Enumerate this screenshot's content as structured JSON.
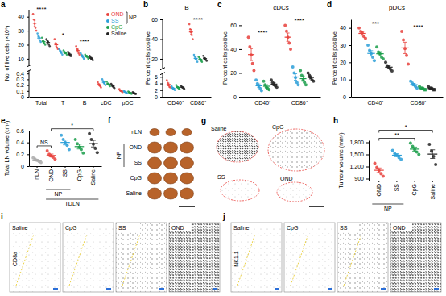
{
  "chart_data": [
    {
      "panel": "a",
      "type": "dot",
      "y_label": "No. of live cells (×10⁶)",
      "categories": [
        "Total",
        "T",
        "B",
        "cDC",
        "pDC"
      ],
      "ylim": [
        0,
        45
      ],
      "yticks": [
        0,
        0.1,
        0.2,
        0.3,
        0.4,
        10,
        20,
        30,
        40
      ],
      "legend": "top-right",
      "legend_group": {
        "label": "NP",
        "members": [
          "OND",
          "SS"
        ]
      },
      "series": [
        {
          "name": "OND",
          "color": "#e8413c",
          "values": [
            [
              42,
              38,
              35,
              32,
              30
            ],
            [
              24,
              21,
              20,
              18,
              17
            ],
            [
              19,
              17,
              16,
              14,
              13
            ],
            [
              0.25,
              0.22,
              0.2,
              0.18,
              0.16
            ],
            [
              0.13,
              0.11,
              0.1,
              0.09,
              0.08
            ]
          ],
          "mean": [
            35.4,
            20,
            15.8,
            0.202,
            0.102
          ],
          "error": [
            2.1,
            1.2,
            1.1,
            0.016,
            0.009
          ]
        },
        {
          "name": "SS",
          "color": "#2b9fd8",
          "values": [
            [
              28,
              26,
              25,
              23,
              22
            ],
            [
              17,
              16,
              15,
              14,
              13
            ],
            [
              14,
              13,
              12,
              11,
              10
            ],
            [
              0.3,
              0.27,
              0.25,
              0.22,
              0.2
            ],
            [
              0.1,
              0.09,
              0.08,
              0.07,
              0.06
            ]
          ],
          "mean": [
            24.8,
            15,
            12,
            0.248,
            0.08
          ],
          "error": [
            1.1,
            0.7,
            0.7,
            0.018,
            0.007
          ]
        },
        {
          "name": "CpG",
          "color": "#1a9e4a",
          "values": [
            [
              25,
              23,
              22,
              21,
              20
            ],
            [
              16,
              15,
              14,
              14,
              13
            ],
            [
              13,
              12,
              12,
              11,
              10
            ],
            [
              0.26,
              0.23,
              0.22,
              0.2,
              0.18
            ],
            [
              0.09,
              0.08,
              0.07,
              0.06,
              0.05
            ]
          ],
          "mean": [
            22.2,
            14.4,
            11.6,
            0.218,
            0.07
          ],
          "error": [
            0.9,
            0.5,
            0.5,
            0.013,
            0.007
          ]
        },
        {
          "name": "Saline",
          "color": "#222222",
          "values": [
            [
              24,
              23,
              22,
              20,
              19
            ],
            [
              15,
              14,
              13,
              12,
              12
            ],
            [
              12,
              11,
              10,
              10,
              9
            ],
            [
              0.22,
              0.2,
              0.18,
              0.16,
              0.15
            ],
            [
              0.08,
              0.07,
              0.06,
              0.05,
              0.05
            ]
          ],
          "mean": [
            21.6,
            13.2,
            10.4,
            0.182,
            0.062
          ],
          "error": [
            0.9,
            0.6,
            0.5,
            0.013,
            0.006
          ]
        }
      ],
      "annotations": [
        {
          "text": "****",
          "category": "Total"
        },
        {
          "text": "*",
          "category": "T"
        },
        {
          "text": "****",
          "category": "B"
        }
      ]
    },
    {
      "panel": "b",
      "type": "dot",
      "title": "B",
      "y_label": "Percent cells positive",
      "categories": [
        "CD40⁺",
        "CD86⁺"
      ],
      "ylim": [
        0,
        60
      ],
      "yticks": [
        0,
        2,
        4,
        6,
        20,
        40,
        60
      ],
      "series": [
        {
          "color": "#e8413c",
          "values": [
            [
              5,
              4.2,
              3.5,
              3,
              2.8
            ],
            [
              55,
              50,
              47,
              44,
              40
            ]
          ],
          "mean": [
            3.7,
            47.2
          ],
          "error": [
            0.4,
            2.6
          ]
        },
        {
          "color": "#2b9fd8",
          "values": [
            [
              3.2,
              2.8,
              2.5,
              2.2,
              2
            ],
            [
              24,
              22,
              20,
              19,
              17
            ]
          ],
          "mean": [
            2.54,
            20.4
          ],
          "error": [
            0.2,
            1.2
          ]
        },
        {
          "color": "#1a9e4a",
          "values": [
            [
              3.5,
              3,
              2.8,
              2.5,
              2.3
            ],
            [
              22,
              21,
              19,
              18,
              17
            ]
          ],
          "mean": [
            2.82,
            19.4
          ],
          "error": [
            0.2,
            0.9
          ]
        },
        {
          "color": "#222222",
          "values": [
            [
              3.3,
              3,
              2.8,
              2.6,
              2.4
            ],
            [
              23,
              21,
              20,
              19,
              18
            ]
          ],
          "mean": [
            2.82,
            20.2
          ],
          "error": [
            0.16,
            0.9
          ]
        }
      ],
      "annotations": [
        {
          "text": "****",
          "category": "CD86⁺"
        }
      ]
    },
    {
      "panel": "c",
      "type": "dot",
      "title": "cDCs",
      "y_label": "Percent cells positive",
      "categories": [
        "CD40⁺",
        "CD86⁺"
      ],
      "ylim": [
        0,
        65
      ],
      "yticks": [
        0,
        20,
        40,
        60
      ],
      "series": [
        {
          "color": "#e8413c",
          "values": [
            [
              50,
              42,
              35,
              28,
              22
            ],
            [
              60,
              55,
              50,
              45,
              40
            ]
          ],
          "mean": [
            35.4,
            50
          ],
          "error": [
            5,
            3.5
          ]
        },
        {
          "color": "#2b9fd8",
          "values": [
            [
              14,
              11,
              9,
              7,
              5
            ],
            [
              25,
              20,
              16,
              12,
              10
            ]
          ],
          "mean": [
            9.2,
            16.6
          ],
          "error": [
            1.5,
            2.7
          ]
        },
        {
          "color": "#1a9e4a",
          "values": [
            [
              13,
              10,
              8,
              7,
              6
            ],
            [
              22,
              18,
              14,
              12,
              10
            ]
          ],
          "mean": [
            8.8,
            15.2
          ],
          "error": [
            1.3,
            2.2
          ]
        },
        {
          "color": "#222222",
          "values": [
            [
              14,
              12,
              10,
              9,
              8
            ],
            [
              20,
              18,
              16,
              14,
              13
            ]
          ],
          "mean": [
            10.6,
            16.2
          ],
          "error": [
            1.1,
            1.3
          ]
        }
      ],
      "annotations": [
        {
          "text": "****",
          "category": "CD40⁺"
        },
        {
          "text": "****",
          "category": "CD86⁺"
        }
      ]
    },
    {
      "panel": "d",
      "type": "dot",
      "title": "pDCs",
      "y_label": "Percent cells positive",
      "categories": [
        "CD40⁺",
        "CD86⁺"
      ],
      "ylim": [
        0,
        45
      ],
      "yticks": [
        0,
        10,
        20,
        30,
        40
      ],
      "series": [
        {
          "color": "#e8413c",
          "values": [
            [
              40,
              38,
              37,
              35,
              34
            ],
            [
              38,
              33,
              28,
              24,
              19
            ]
          ],
          "mean": [
            36.8,
            28.4
          ],
          "error": [
            1.1,
            3.3
          ]
        },
        {
          "color": "#2b9fd8",
          "values": [
            [
              30,
              27,
              25,
              23,
              21
            ],
            [
              9,
              8,
              7,
              6,
              5
            ]
          ],
          "mean": [
            25.2,
            7
          ],
          "error": [
            1.6,
            0.7
          ]
        },
        {
          "color": "#1a9e4a",
          "values": [
            [
              29,
              26,
              25,
              23,
              22
            ],
            [
              6,
              5,
              5,
              4,
              4
            ]
          ],
          "mean": [
            25,
            4.8
          ],
          "error": [
            1.2,
            0.4
          ]
        },
        {
          "color": "#222222",
          "values": [
            [
              20,
              18,
              17,
              16,
              15
            ],
            [
              6,
              5,
              5,
              4,
              4
            ]
          ],
          "mean": [
            17.2,
            4.8
          ],
          "error": [
            0.9,
            0.4
          ]
        }
      ],
      "annotations": [
        {
          "text": "***",
          "category": "CD40⁺"
        },
        {
          "text": "****",
          "category": "CD86⁺"
        }
      ]
    },
    {
      "panel": "e",
      "type": "dot",
      "y_label": "Total LN volume (cm³)",
      "categories": [
        "nLN",
        "OND",
        "SS",
        "CpG",
        "Saline"
      ],
      "colors": [
        "#aaaaaa",
        "#e8413c",
        "#2b9fd8",
        "#1a9e4a",
        "#222222"
      ],
      "ylim": [
        0,
        0.6
      ],
      "yticks": [
        0,
        0.2,
        0.4,
        0.6
      ],
      "values": [
        [
          0.14,
          0.12,
          0.1,
          0.08,
          0.06
        ],
        [
          0.26,
          0.2,
          0.17,
          0.15,
          0.12
        ],
        [
          0.52,
          0.45,
          0.4,
          0.35,
          0.28
        ],
        [
          0.45,
          0.38,
          0.32,
          0.28,
          0.22
        ],
        [
          0.55,
          0.45,
          0.37,
          0.3,
          0.23
        ]
      ],
      "mean": [
        0.1,
        0.18,
        0.4,
        0.33,
        0.38
      ],
      "error": [
        0.014,
        0.024,
        0.041,
        0.04,
        0.056
      ],
      "groups": [
        {
          "label": "NP",
          "members": [
            "OND",
            "SS"
          ]
        },
        {
          "label": "TDLN",
          "members": [
            "OND",
            "SS",
            "CpG",
            "Saline"
          ]
        }
      ],
      "annotations": [
        {
          "text": "NS",
          "from": "nLN",
          "to": "OND"
        },
        {
          "text": "*",
          "from": "OND",
          "to": "Saline"
        }
      ]
    },
    {
      "panel": "h",
      "type": "dot",
      "y_label": "Tumour volume (mm³)",
      "categories": [
        "OND",
        "SS",
        "CpG",
        "Saline"
      ],
      "colors": [
        "#e8413c",
        "#2b9fd8",
        "#1a9e4a",
        "#222222"
      ],
      "ylim": [
        850,
        1850
      ],
      "yticks": [
        900,
        {
          "value": 1200,
          "label": "1,200"
        },
        {
          "value": 1500,
          "label": "1,500"
        },
        {
          "value": 1800,
          "label": "1,800"
        }
      ],
      "values": [
        [
          1280,
          1180,
          1100,
          1020,
          960
        ],
        [
          1600,
          1520,
          1480,
          1420,
          1380
        ],
        [
          1780,
          1700,
          1620,
          1560,
          1500
        ],
        [
          1750,
          1580,
          1450,
          1250
        ]
      ],
      "mean": [
        1108,
        1480,
        1632,
        1507.5
      ],
      "error": [
        56,
        38,
        50,
        107
      ],
      "groups": [
        {
          "label": "NP",
          "members": [
            "OND",
            "SS"
          ]
        }
      ],
      "annotations": [
        {
          "text": "**",
          "from": "OND",
          "to": "CpG"
        },
        {
          "text": "*",
          "from": "OND",
          "to": "Saline"
        }
      ]
    }
  ],
  "image_panels": [
    {
      "panel": "f",
      "labels": [
        "nLN",
        "OND",
        "SS",
        "CpG",
        "Saline"
      ],
      "group": {
        "label": "NP",
        "members": [
          "OND",
          "SS"
        ]
      }
    },
    {
      "panel": "g",
      "labels": [
        "Saline",
        "CpG",
        "SS",
        "OND"
      ]
    },
    {
      "panel": "i",
      "marker_label": "CD8a",
      "labels": [
        "Saline",
        "CpG",
        "SS",
        "OND"
      ]
    },
    {
      "panel": "j",
      "marker_label": "NK1.1",
      "labels": [
        "Saline",
        "CpG",
        "SS",
        "OND"
      ]
    }
  ]
}
